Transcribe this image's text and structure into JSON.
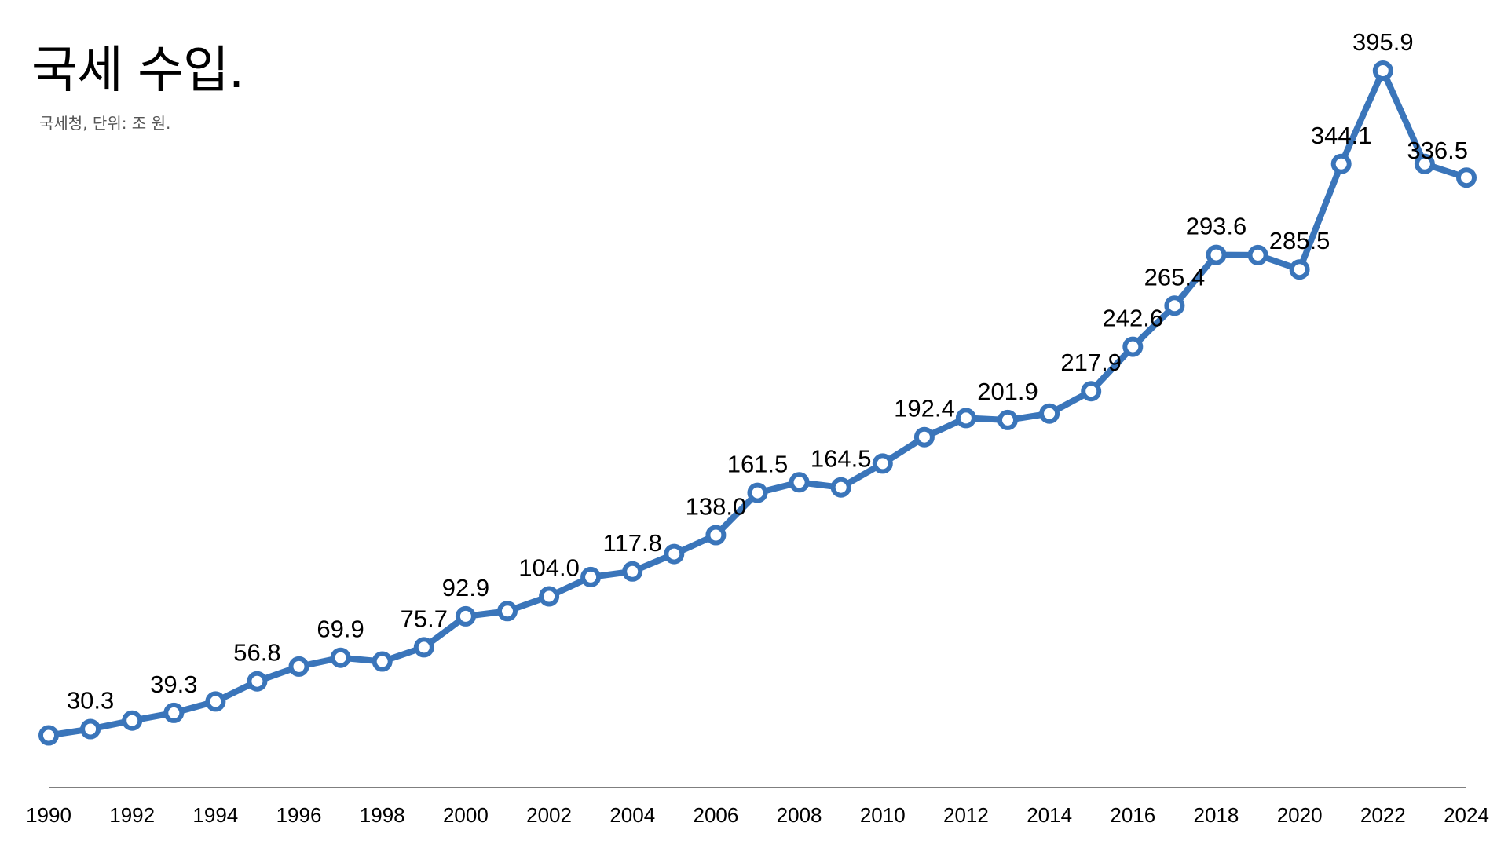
{
  "header": {
    "title": "국세 수입.",
    "subtitle": "국세청, 단위: 조 원."
  },
  "colors": {
    "line": "#3A75BA",
    "marker_fill": "#ffffff",
    "axis": "#333333",
    "text": "#000000"
  },
  "chart_data": {
    "type": "line",
    "title": "국세 수입.",
    "subtitle": "국세청, 단위: 조 원.",
    "xlabel": "",
    "ylabel": "",
    "x": [
      1990,
      1991,
      1992,
      1993,
      1994,
      1995,
      1996,
      1997,
      1998,
      1999,
      2000,
      2001,
      2002,
      2003,
      2004,
      2005,
      2006,
      2007,
      2008,
      2009,
      2010,
      2011,
      2012,
      2013,
      2014,
      2015,
      2016,
      2017,
      2018,
      2019,
      2020,
      2021,
      2022,
      2023,
      2024
    ],
    "x_tick_labels": [
      "1990",
      "1992",
      "1994",
      "1996",
      "1998",
      "2000",
      "2002",
      "2004",
      "2006",
      "2008",
      "2010",
      "2012",
      "2014",
      "2016",
      "2018",
      "2020",
      "2022",
      "2024"
    ],
    "series": [
      {
        "values": [
          26.8,
          30.3,
          35.0,
          39.3,
          45.6,
          56.8,
          65.0,
          69.9,
          67.8,
          75.7,
          92.9,
          95.8,
          104.0,
          114.7,
          117.8,
          127.5,
          138.0,
          161.5,
          167.3,
          164.5,
          177.7,
          192.4,
          203.0,
          201.9,
          205.5,
          217.9,
          242.6,
          265.4,
          293.6,
          293.5,
          285.5,
          344.1,
          395.9,
          344.1,
          336.5
        ]
      }
    ],
    "point_labels": [
      {
        "x": 1991,
        "text": "30.3"
      },
      {
        "x": 1993,
        "text": "39.3"
      },
      {
        "x": 1995,
        "text": "56.8"
      },
      {
        "x": 1997,
        "text": "69.9"
      },
      {
        "x": 1999,
        "text": "75.7"
      },
      {
        "x": 2000,
        "text": "92.9"
      },
      {
        "x": 2002,
        "text": "104.0"
      },
      {
        "x": 2004,
        "text": "117.8"
      },
      {
        "x": 2006,
        "text": "138.0"
      },
      {
        "x": 2007,
        "text": "161.5"
      },
      {
        "x": 2009,
        "text": "164.5"
      },
      {
        "x": 2011,
        "text": "192.4"
      },
      {
        "x": 2013,
        "text": "201.9"
      },
      {
        "x": 2015,
        "text": "217.9"
      },
      {
        "x": 2016,
        "text": "242.6"
      },
      {
        "x": 2017,
        "text": "265.4"
      },
      {
        "x": 2018,
        "text": "293.6"
      },
      {
        "x": 2020,
        "text": "285.5"
      },
      {
        "x": 2021,
        "text": "344.1"
      },
      {
        "x": 2022,
        "text": "395.9"
      },
      {
        "x": 2024,
        "text": "336.5"
      }
    ],
    "xlim": [
      1990,
      2024
    ],
    "ylim": [
      0,
      420
    ],
    "grid": false,
    "legend": "none"
  }
}
